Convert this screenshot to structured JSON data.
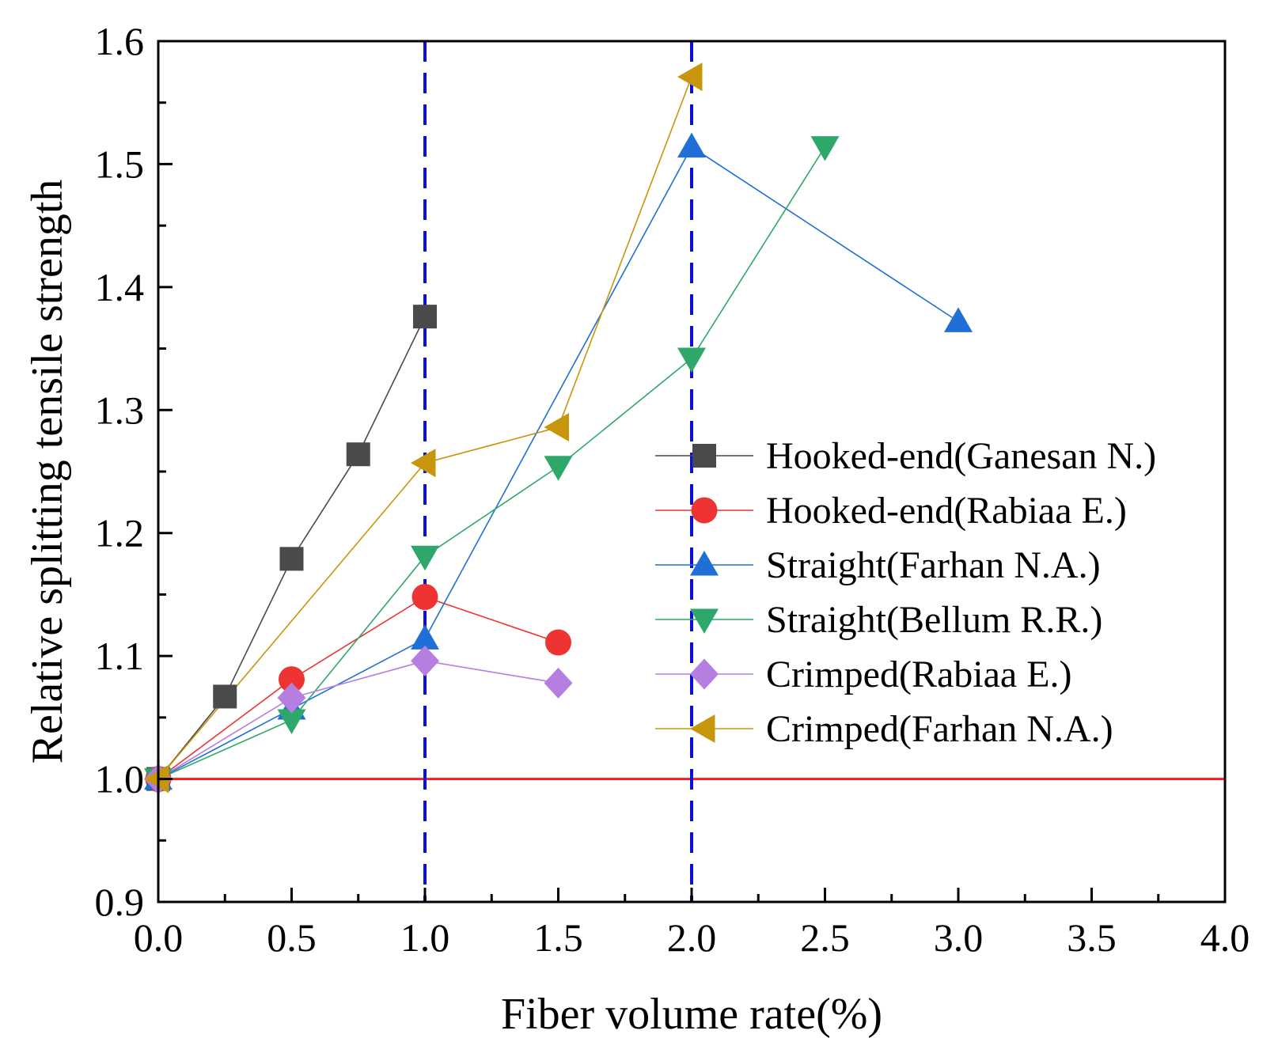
{
  "chart_data": {
    "type": "line",
    "title": "",
    "xlabel": "Fiber volume rate(%)",
    "ylabel": "Relative splitting tensile strength",
    "xlim": [
      0.0,
      4.0
    ],
    "ylim": [
      0.9,
      1.6
    ],
    "xticks": [
      "0.0",
      "0.5",
      "1.0",
      "1.5",
      "2.0",
      "2.5",
      "3.0",
      "3.5",
      "4.0"
    ],
    "yticks": [
      "0.9",
      "1.0",
      "1.1",
      "1.2",
      "1.3",
      "1.4",
      "1.5",
      "1.6"
    ],
    "reference_lines": [
      {
        "orientation": "horizontal",
        "value": 1.0,
        "style": "solid",
        "color": "#ff1a1a"
      },
      {
        "orientation": "vertical",
        "value": 1.0,
        "style": "dashed",
        "color": "#0b10d8"
      },
      {
        "orientation": "vertical",
        "value": 2.0,
        "style": "dashed",
        "color": "#0b10d8"
      }
    ],
    "legend_position": "right",
    "series": [
      {
        "name": "Hooked-end(Ganesan N.)",
        "marker": "square",
        "color": "#4a4a4a",
        "x": [
          0,
          0.25,
          0.5,
          0.75,
          1.0
        ],
        "y": [
          1.0,
          1.067,
          1.179,
          1.264,
          1.376
        ]
      },
      {
        "name": "Hooked-end(Rabiaa E.)",
        "marker": "circle",
        "color": "#ee3333",
        "x": [
          0,
          0.5,
          1.0,
          1.5
        ],
        "y": [
          1.0,
          1.081,
          1.148,
          1.111
        ]
      },
      {
        "name": "Straight(Farhan N.A.)",
        "marker": "triangle-up",
        "color": "#1f6fd6",
        "x": [
          0,
          0.5,
          1.0,
          2.0,
          3.0
        ],
        "y": [
          1.0,
          1.057,
          1.114,
          1.514,
          1.372
        ]
      },
      {
        "name": "Straight(Bellum R.R.)",
        "marker": "triangle-down",
        "color": "#2ea86a",
        "x": [
          0,
          0.5,
          1.0,
          1.5,
          2.0,
          2.5
        ],
        "y": [
          1.0,
          1.048,
          1.181,
          1.254,
          1.342,
          1.514
        ]
      },
      {
        "name": "Crimped(Rabiaa E.)",
        "marker": "diamond",
        "color": "#b57ee0",
        "x": [
          0,
          0.5,
          1.0,
          1.5
        ],
        "y": [
          1.0,
          1.066,
          1.096,
          1.078
        ]
      },
      {
        "name": "Crimped(Farhan N.A.)",
        "marker": "triangle-left",
        "color": "#c8960c",
        "x": [
          0,
          1.0,
          1.5,
          2.0
        ],
        "y": [
          1.0,
          1.257,
          1.286,
          1.571
        ]
      }
    ]
  }
}
